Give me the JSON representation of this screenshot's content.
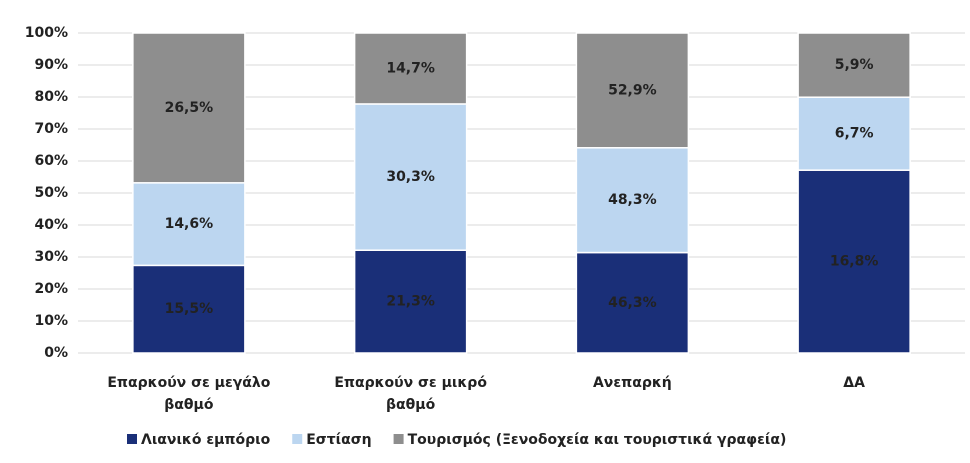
{
  "chart_data": {
    "type": "bar",
    "stacking": "percent",
    "categories": [
      "Επαρκούν σε μεγάλο βαθμό",
      "Επαρκούν σε μικρό βαθμό",
      "Ανεπαρκή",
      "ΔΑ"
    ],
    "series": [
      {
        "name": "Λιανικό εμπόριο",
        "color": "#1a2f78",
        "values": [
          15.5,
          21.3,
          46.3,
          16.8
        ],
        "value_labels": [
          "15,5%",
          "21,3%",
          "46,3%",
          "16,8%"
        ]
      },
      {
        "name": "Εστίαση",
        "color": "#bcd6f0",
        "values": [
          14.6,
          30.3,
          48.3,
          6.7
        ],
        "value_labels": [
          "14,6%",
          "30,3%",
          "48,3%",
          "6,7%"
        ]
      },
      {
        "name": "Τουρισμός (Ξενοδοχεία και τουριστικά γραφεία)",
        "color": "#8e8e8e",
        "values": [
          26.5,
          14.7,
          52.9,
          5.9
        ],
        "value_labels": [
          "26,5%",
          "14,7%",
          "52,9%",
          "5,9%"
        ]
      }
    ],
    "ylim": [
      0,
      100
    ],
    "yticks": [
      {
        "value": 0,
        "label": "0%"
      },
      {
        "value": 10,
        "label": "10%"
      },
      {
        "value": 20,
        "label": "20%"
      },
      {
        "value": 30,
        "label": "30%"
      },
      {
        "value": 40,
        "label": "40%"
      },
      {
        "value": 50,
        "label": "50%"
      },
      {
        "value": 60,
        "label": "60%"
      },
      {
        "value": 70,
        "label": "70%"
      },
      {
        "value": 80,
        "label": "80%"
      },
      {
        "value": 90,
        "label": "90%"
      },
      {
        "value": 100,
        "label": "100%"
      }
    ],
    "grid": true,
    "legend": "bottom"
  }
}
